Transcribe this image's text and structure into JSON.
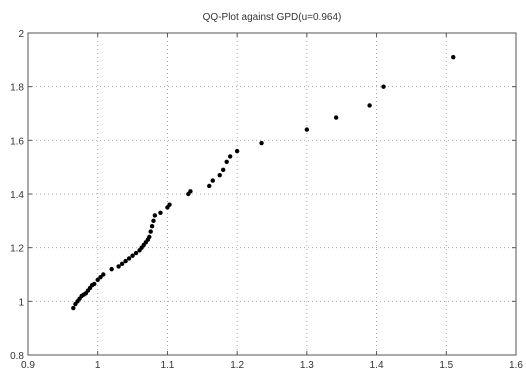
{
  "chart_data": {
    "type": "scatter",
    "title": "QQ-Plot against GPD(u=0.964)",
    "xlabel": "",
    "ylabel": "",
    "xlim": [
      0.9,
      1.6
    ],
    "ylim": [
      0.8,
      2.0
    ],
    "xticks": [
      "0.9",
      "1",
      "1.1",
      "1.2",
      "1.3",
      "1.4",
      "1.5",
      "1.6"
    ],
    "yticks": [
      "0.8",
      "1",
      "1.2",
      "1.4",
      "1.6",
      "1.8",
      "2"
    ],
    "grid": true,
    "marker_color": "#000000",
    "series": [
      {
        "x": [
          0.965,
          0.968,
          0.971,
          0.974,
          0.977,
          0.98,
          0.983,
          0.986,
          0.989,
          0.992,
          0.995,
          1.0,
          1.004,
          1.008,
          1.02,
          1.03,
          1.035,
          1.04,
          1.045,
          1.05,
          1.055,
          1.06,
          1.063,
          1.066,
          1.069,
          1.072,
          1.074,
          1.076,
          1.078,
          1.08,
          1.082,
          1.09,
          1.1,
          1.103,
          1.13,
          1.133,
          1.16,
          1.165,
          1.175,
          1.18,
          1.185,
          1.19,
          1.2,
          1.235,
          1.3,
          1.342,
          1.39,
          1.41,
          1.51
        ],
        "y": [
          0.975,
          0.99,
          1.0,
          1.01,
          1.02,
          1.025,
          1.03,
          1.04,
          1.05,
          1.06,
          1.065,
          1.08,
          1.09,
          1.1,
          1.12,
          1.13,
          1.14,
          1.15,
          1.16,
          1.17,
          1.18,
          1.19,
          1.2,
          1.21,
          1.22,
          1.23,
          1.24,
          1.26,
          1.28,
          1.3,
          1.32,
          1.33,
          1.35,
          1.36,
          1.4,
          1.41,
          1.43,
          1.45,
          1.47,
          1.49,
          1.52,
          1.54,
          1.56,
          1.59,
          1.64,
          1.685,
          1.73,
          1.8,
          1.91
        ]
      }
    ]
  }
}
